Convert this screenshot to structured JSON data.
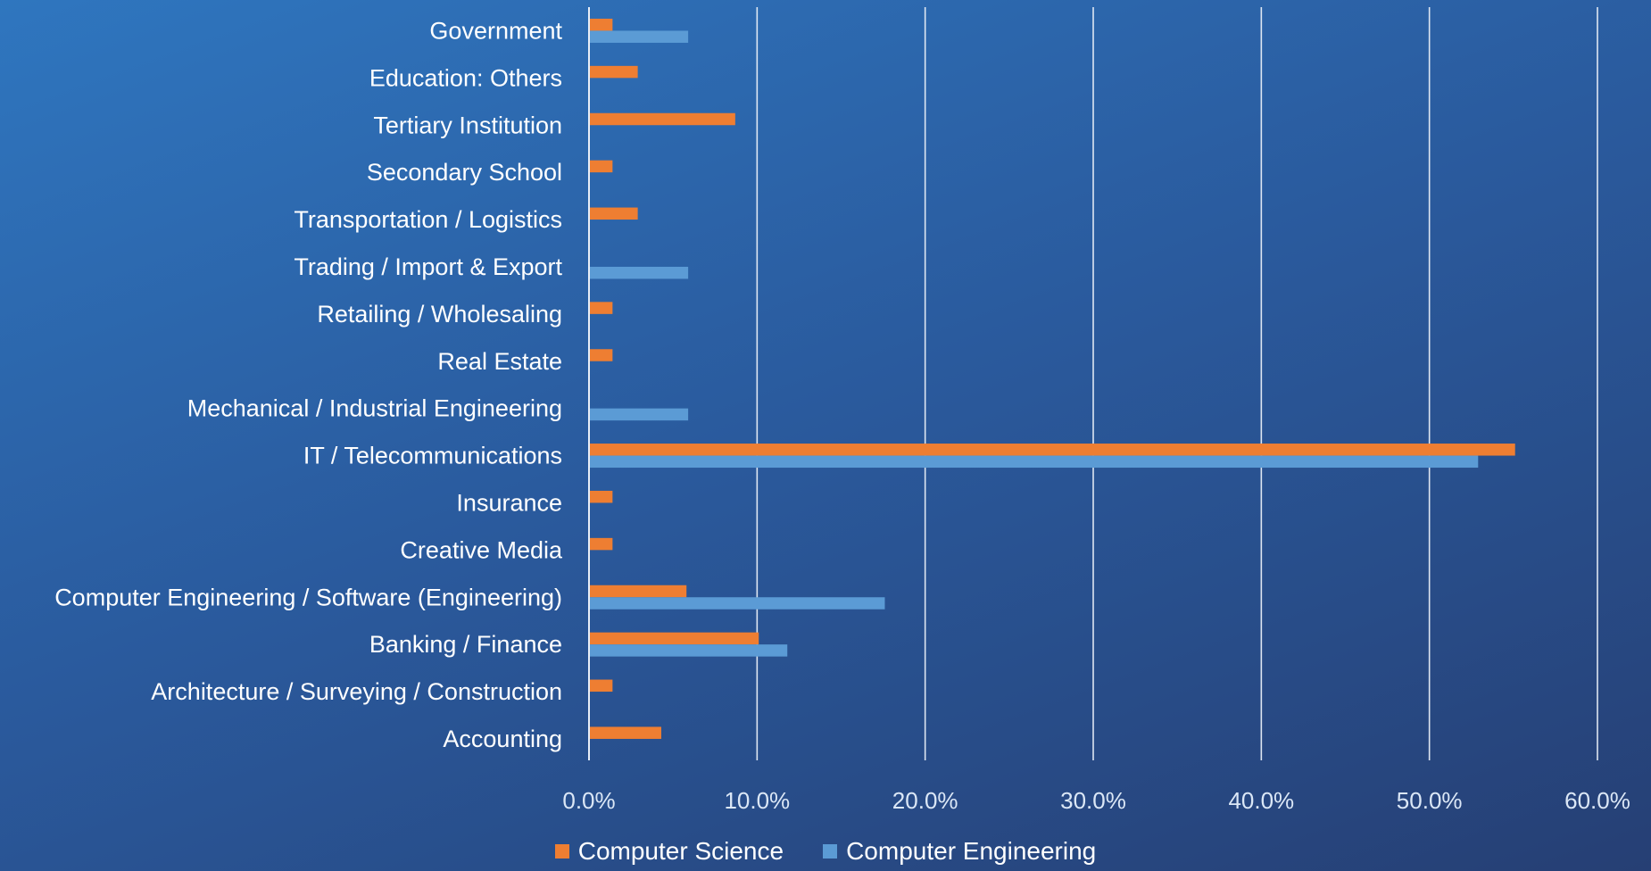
{
  "chart_data": {
    "type": "bar",
    "orientation": "horizontal",
    "title": "",
    "xlabel": "",
    "ylabel": "",
    "xlim": [
      0,
      60
    ],
    "x_ticks": [
      0,
      10,
      20,
      30,
      40,
      50,
      60
    ],
    "x_tick_labels": [
      "0.0%",
      "10.0%",
      "20.0%",
      "30.0%",
      "40.0%",
      "50.0%",
      "60.0%"
    ],
    "grid": "vertical",
    "legend_position": "bottom",
    "categories": [
      "Government",
      "Education: Others",
      "Tertiary Institution",
      "Secondary School",
      "Transportation / Logistics",
      "Trading / Import & Export",
      "Retailing / Wholesaling",
      "Real Estate",
      "Mechanical / Industrial Engineering",
      "IT / Telecommunications",
      "Insurance",
      "Creative Media",
      "Computer Engineering / Software (Engineering)",
      "Banking / Finance",
      "Architecture / Surveying / Construction",
      "Accounting"
    ],
    "series": [
      {
        "name": "Computer Science",
        "color": "#ee7e32",
        "values": [
          1.4,
          2.9,
          8.7,
          1.4,
          2.9,
          0,
          1.4,
          1.4,
          0,
          55.1,
          1.4,
          1.4,
          5.8,
          10.1,
          1.4,
          4.3
        ]
      },
      {
        "name": "Computer Engineering",
        "color": "#5b9bd5",
        "values": [
          5.9,
          0,
          0,
          0,
          0,
          5.9,
          0,
          0,
          5.9,
          52.9,
          0,
          0,
          17.6,
          11.8,
          0,
          0
        ]
      }
    ]
  },
  "colors": {
    "text": "#ffffff",
    "tick_text": "#dbe7f6",
    "gridline": "#e8eef7"
  }
}
